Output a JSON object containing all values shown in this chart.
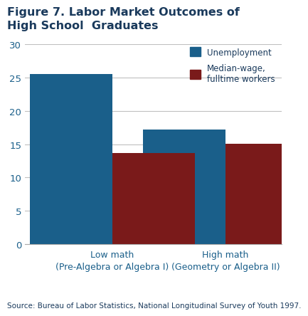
{
  "title_line1": "Figure 7. Labor Market Outcomes of",
  "title_line2": "High School  Graduates",
  "categories": [
    "Low math\n(Pre-Algebra or Algebra I)",
    "High math\n(Geometry or Algebra II)"
  ],
  "unemployment": [
    25.5,
    17.2
  ],
  "median_wage": [
    13.7,
    15.1
  ],
  "unemployment_color": "#1a5f8a",
  "median_wage_color": "#7a1a1a",
  "ylim": [
    0,
    30
  ],
  "yticks": [
    0,
    5,
    10,
    15,
    20,
    25,
    30
  ],
  "legend_labels": [
    "Unemployment",
    "Median-wage,\nfulltime workers"
  ],
  "source_text": "Source: Bureau of Labor Statistics, National Longitudinal Survey of Youth 1997.",
  "title_color": "#1a3a5c",
  "axis_label_color": "#1a5f8a",
  "tick_color": "#555555",
  "background_color": "#ffffff",
  "bar_width": 0.32,
  "group_positions": [
    0.18,
    0.62
  ]
}
